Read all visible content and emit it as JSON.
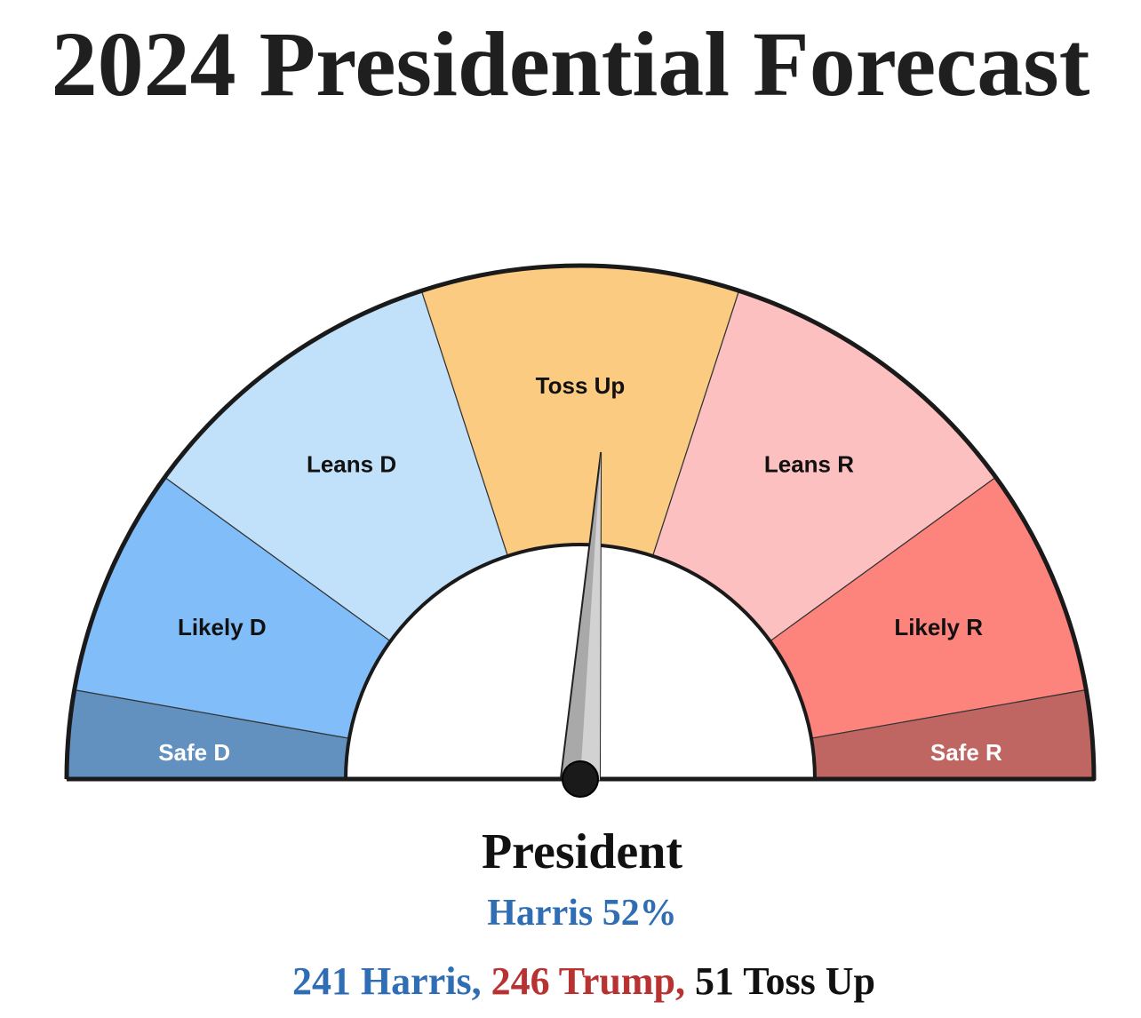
{
  "title": "2024 Presidential Forecast",
  "colors": {
    "harris": "#2f6eb5",
    "trump": "#b83232",
    "tossup_text": "#111111"
  },
  "chart_data": {
    "type": "gauge",
    "segments": [
      {
        "label": "Safe D",
        "color": "#6290bf",
        "text_color": "#ffffff"
      },
      {
        "label": "Likely D",
        "color": "#80bdf9",
        "text_color": "#111111"
      },
      {
        "label": "Leans D",
        "color": "#c1e0fa",
        "text_color": "#111111"
      },
      {
        "label": "Toss Up",
        "color": "#fccb82",
        "text_color": "#111111"
      },
      {
        "label": "Leans R",
        "color": "#fdc0c0",
        "text_color": "#111111"
      },
      {
        "label": "Likely R",
        "color": "#fd837d",
        "text_color": "#111111"
      },
      {
        "label": "Safe R",
        "color": "#bf6562",
        "text_color": "#ffffff"
      }
    ],
    "needle_position": 0.52,
    "race_label": "President",
    "leader_text": "Harris 52%",
    "summary": [
      {
        "text": "241 Harris,",
        "party": "harris"
      },
      {
        "text": "246 Trump,",
        "party": "trump"
      },
      {
        "text": "51 Toss Up",
        "party": "tossup"
      }
    ]
  }
}
